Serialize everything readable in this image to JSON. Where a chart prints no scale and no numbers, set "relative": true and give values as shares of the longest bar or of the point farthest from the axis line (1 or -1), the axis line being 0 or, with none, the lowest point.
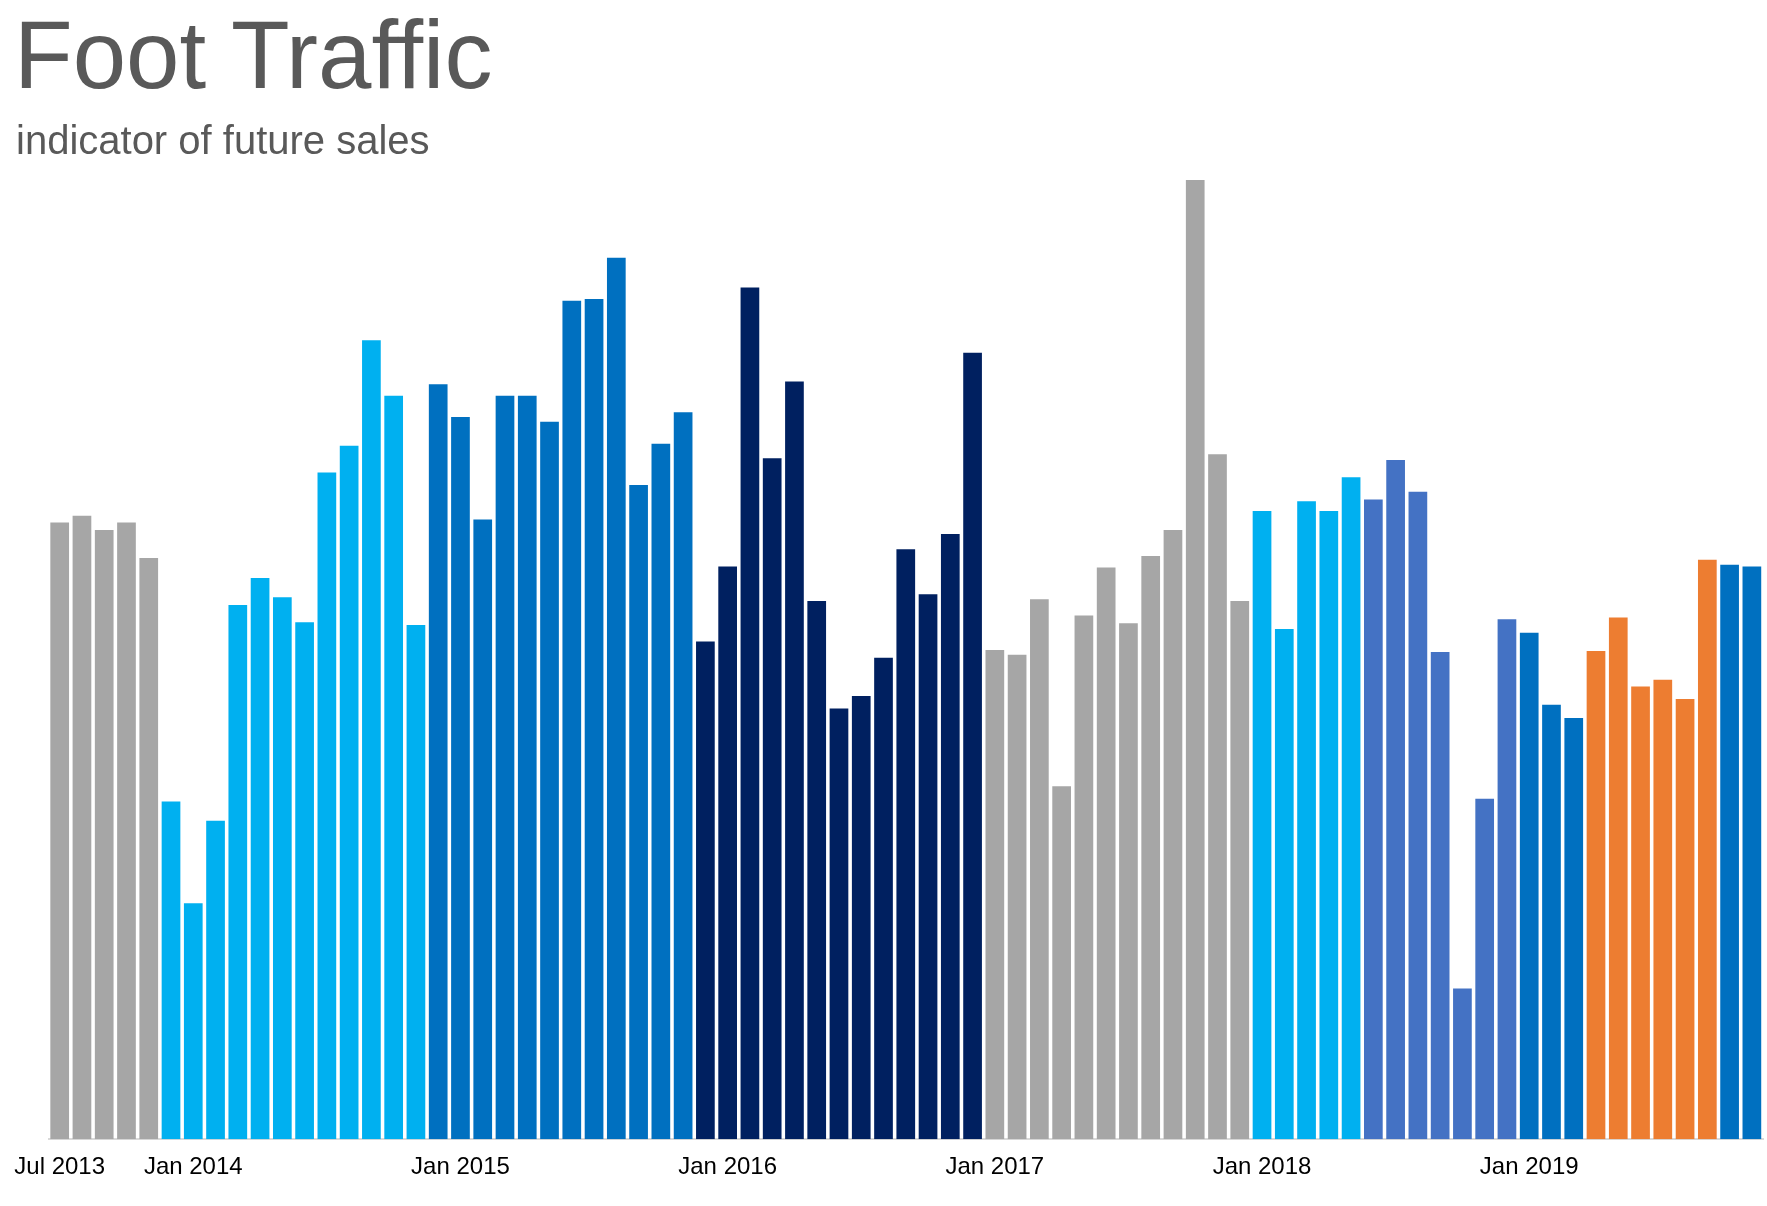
{
  "chart_data": {
    "type": "bar",
    "title": "Foot Traffic",
    "subtitle": "indicator of future sales",
    "relative": true,
    "legend": false,
    "categories": [
      "Jul 2013",
      null,
      null,
      null,
      null,
      null,
      "Jan 2014",
      null,
      null,
      null,
      null,
      null,
      null,
      null,
      null,
      null,
      null,
      null,
      "Jan 2015",
      null,
      null,
      null,
      null,
      null,
      null,
      null,
      null,
      null,
      null,
      null,
      "Jan 2016",
      null,
      null,
      null,
      null,
      null,
      null,
      null,
      null,
      null,
      null,
      null,
      "Jan 2017",
      null,
      null,
      null,
      null,
      null,
      null,
      null,
      null,
      null,
      null,
      null,
      "Jan 2018",
      null,
      null,
      null,
      null,
      null,
      null,
      null,
      null,
      null,
      null,
      null,
      "Jan 2019",
      null,
      null,
      null,
      null,
      null,
      null,
      null,
      null,
      null,
      null
    ],
    "values": [
      0.643,
      0.65,
      0.635,
      0.643,
      0.606,
      0.352,
      0.246,
      0.332,
      0.557,
      0.585,
      0.565,
      0.539,
      0.695,
      0.723,
      0.833,
      0.775,
      0.536,
      0.787,
      0.753,
      0.646,
      0.775,
      0.775,
      0.748,
      0.874,
      0.876,
      0.919,
      0.682,
      0.725,
      0.758,
      0.519,
      0.597,
      0.888,
      0.71,
      0.79,
      0.561,
      0.449,
      0.462,
      0.502,
      0.615,
      0.568,
      0.631,
      0.82,
      0.51,
      0.505,
      0.563,
      0.368,
      0.546,
      0.596,
      0.538,
      0.608,
      0.635,
      1,
      0.714,
      0.561,
      0.655,
      0.532,
      0.665,
      0.655,
      0.69,
      0.667,
      0.708,
      0.675,
      0.508,
      0.157,
      0.355,
      0.542,
      0.528,
      0.453,
      0.439,
      0.509,
      0.544,
      0.472,
      0.479,
      0.459,
      0.604,
      0.599,
      0.597
    ],
    "colors": [
      "#a6a6a6",
      "#a6a6a6",
      "#a6a6a6",
      "#a6a6a6",
      "#a6a6a6",
      "#00b0f0",
      "#00b0f0",
      "#00b0f0",
      "#00b0f0",
      "#00b0f0",
      "#00b0f0",
      "#00b0f0",
      "#00b0f0",
      "#00b0f0",
      "#00b0f0",
      "#00b0f0",
      "#00b0f0",
      "#0070c0",
      "#0070c0",
      "#0070c0",
      "#0070c0",
      "#0070c0",
      "#0070c0",
      "#0070c0",
      "#0070c0",
      "#0070c0",
      "#0070c0",
      "#0070c0",
      "#0070c0",
      "#002060",
      "#002060",
      "#002060",
      "#002060",
      "#002060",
      "#002060",
      "#002060",
      "#002060",
      "#002060",
      "#002060",
      "#002060",
      "#002060",
      "#002060",
      "#a6a6a6",
      "#a6a6a6",
      "#a6a6a6",
      "#a6a6a6",
      "#a6a6a6",
      "#a6a6a6",
      "#a6a6a6",
      "#a6a6a6",
      "#a6a6a6",
      "#a6a6a6",
      "#a6a6a6",
      "#a6a6a6",
      "#00b0f0",
      "#00b0f0",
      "#00b0f0",
      "#00b0f0",
      "#00b0f0",
      "#4472c4",
      "#4472c4",
      "#4472c4",
      "#4472c4",
      "#4472c4",
      "#4472c4",
      "#4472c4",
      "#0070c0",
      "#0070c0",
      "#0070c0",
      "#ed7d31",
      "#ed7d31",
      "#ed7d31",
      "#ed7d31",
      "#ed7d31",
      "#ed7d31",
      "#0070c0",
      "#0070c0"
    ]
  }
}
